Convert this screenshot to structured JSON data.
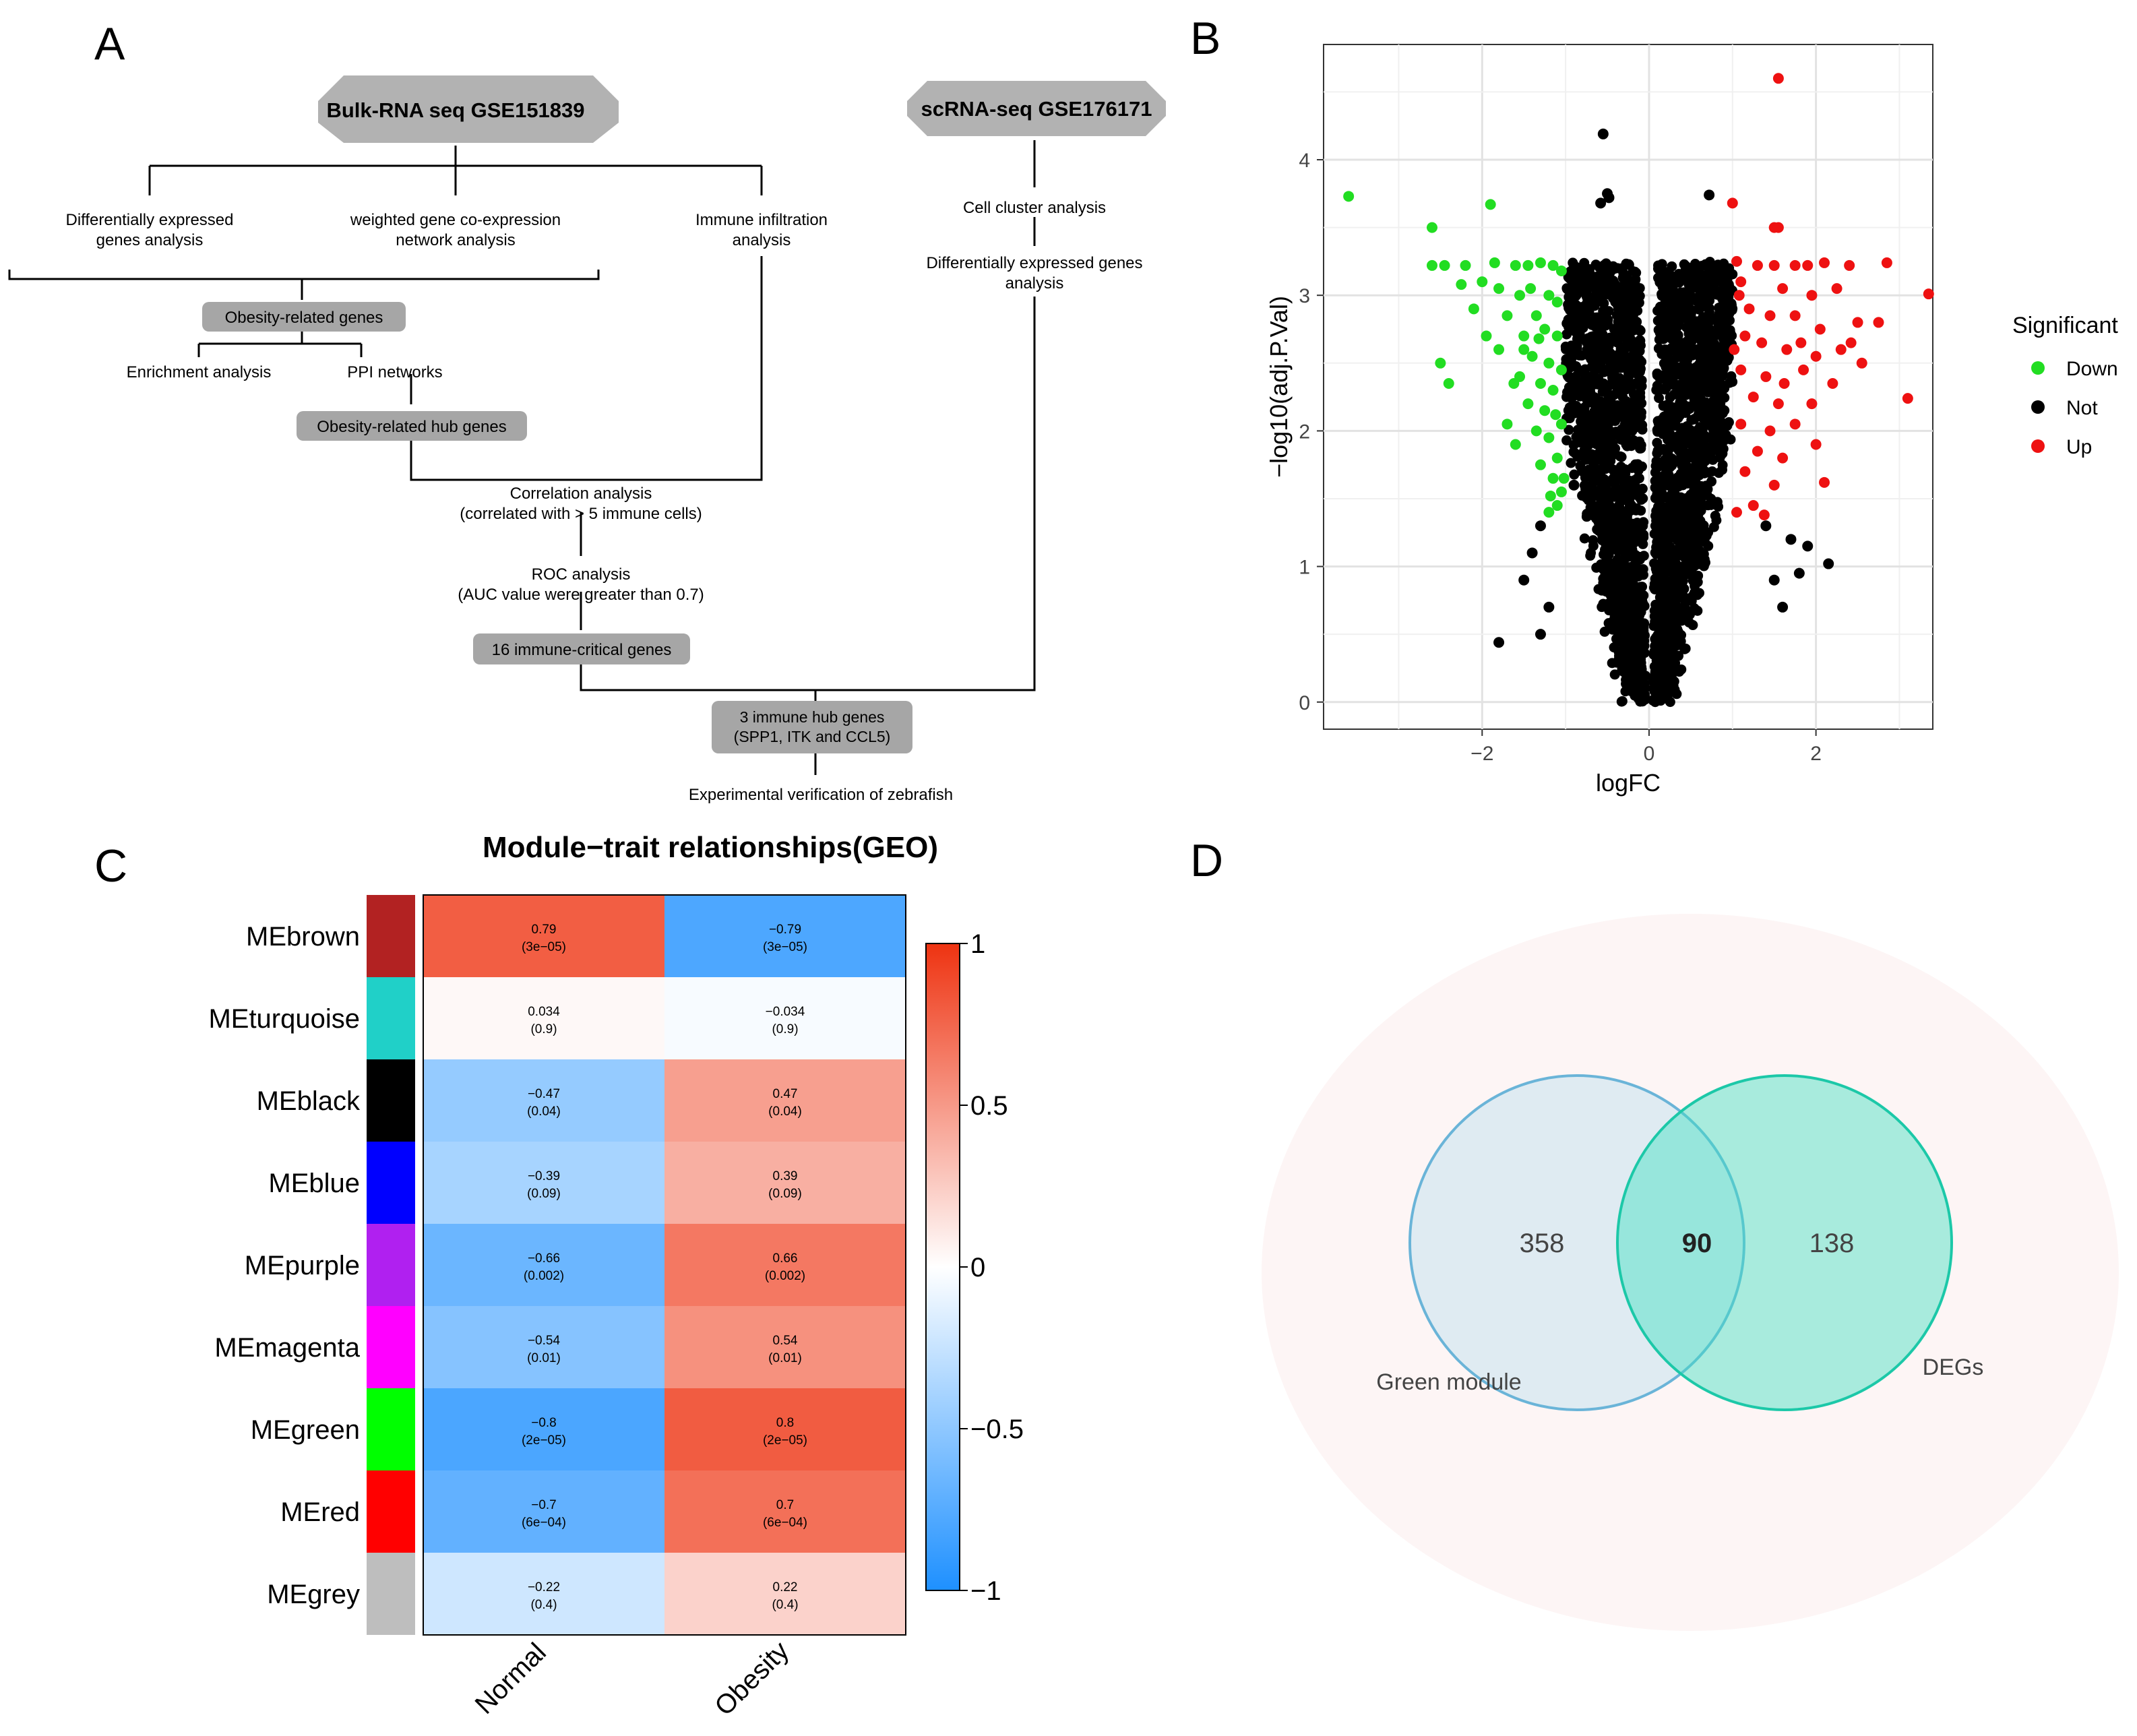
{
  "panels": {
    "a": "A",
    "b": "B",
    "c": "C",
    "d": "D"
  },
  "flowchart": {
    "bulk_title": "Bulk-RNA seq GSE151839",
    "sc_title": "scRNA-seq GSE176171",
    "deg_line1": "Differentially expressed",
    "deg_line2": "genes analysis",
    "wgcna_line1": "weighted gene co-expression",
    "wgcna_line2": "network analysis",
    "immune_line1": "Immune infiltration",
    "immune_line2": "analysis",
    "cell_cluster": "Cell cluster analysis",
    "sc_deg_line1": "Differentially expressed genes",
    "sc_deg_line2": "analysis",
    "obesity_genes": "Obesity-related genes",
    "enrichment": "Enrichment analysis",
    "ppi": "PPI networks",
    "hub_genes": "Obesity-related hub genes",
    "corr_line1": "Correlation analysis",
    "corr_line2": "(correlated with > 5 immune cells)",
    "roc_line1": "ROC analysis",
    "roc_line2": "(AUC value were greater than 0.7)",
    "critical": "16 immune-critical genes",
    "hub3_line1": "3 immune hub genes",
    "hub3_line2": "(SPP1, ITK and CCL5)",
    "verification": "Experimental verification of zebrafish"
  },
  "chart_data": [
    {
      "type": "scatter",
      "subtype": "volcano",
      "xlabel": "logFC",
      "ylabel": "−log10(adj.P.Val)",
      "xlim": [
        -3.9,
        3.4
      ],
      "ylim": [
        -0.2,
        4.85
      ],
      "xticks": [
        -2,
        0,
        2
      ],
      "xtick_labels": [
        "−2",
        "0",
        "2"
      ],
      "yticks": [
        0,
        1,
        2,
        3,
        4
      ],
      "ytick_labels": [
        "0",
        "1",
        "2",
        "3",
        "4"
      ],
      "grid": true,
      "legend_title": "Significant",
      "legend_position": "right",
      "series": [
        {
          "name": "Down",
          "color": "#22dd22",
          "points": [
            [
              -3.6,
              3.73
            ],
            [
              -2.6,
              3.5
            ],
            [
              -1.9,
              3.67
            ],
            [
              -2.6,
              3.22
            ],
            [
              -2.45,
              3.22
            ],
            [
              -2.2,
              3.22
            ],
            [
              -2.0,
              3.1
            ],
            [
              -1.85,
              3.24
            ],
            [
              -1.6,
              3.22
            ],
            [
              -1.45,
              3.22
            ],
            [
              -1.3,
              3.24
            ],
            [
              -1.15,
              3.22
            ],
            [
              -1.05,
              3.18
            ],
            [
              -2.25,
              3.08
            ],
            [
              -1.8,
              3.05
            ],
            [
              -1.55,
              3.0
            ],
            [
              -1.2,
              3.0
            ],
            [
              -1.1,
              2.95
            ],
            [
              -1.35,
              2.85
            ],
            [
              -1.7,
              2.85
            ],
            [
              -2.1,
              2.9
            ],
            [
              -1.95,
              2.7
            ],
            [
              -1.5,
              2.7
            ],
            [
              -1.25,
              2.75
            ],
            [
              -1.1,
              2.7
            ],
            [
              -1.8,
              2.6
            ],
            [
              -1.4,
              2.55
            ],
            [
              -1.2,
              2.5
            ],
            [
              -1.05,
              2.45
            ],
            [
              -2.5,
              2.5
            ],
            [
              -2.4,
              2.35
            ],
            [
              -1.55,
              2.4
            ],
            [
              -1.3,
              2.35
            ],
            [
              -1.15,
              2.3
            ],
            [
              -1.45,
              2.2
            ],
            [
              -1.7,
              2.05
            ],
            [
              -1.35,
              2.0
            ],
            [
              -1.2,
              1.95
            ],
            [
              -1.05,
              2.05
            ],
            [
              -1.1,
              1.8
            ],
            [
              -1.3,
              1.75
            ],
            [
              -1.15,
              1.65
            ],
            [
              -1.05,
              1.55
            ],
            [
              -1.2,
              1.4
            ],
            [
              -1.1,
              1.45
            ],
            [
              -1.6,
              1.9
            ],
            [
              -1.25,
              2.15
            ],
            [
              -1.5,
              2.6
            ],
            [
              -1.62,
              2.35
            ],
            [
              -1.32,
              2.68
            ],
            [
              -1.42,
              3.05
            ],
            [
              -1.12,
              2.12
            ],
            [
              -1.02,
              1.65
            ],
            [
              -1.18,
              1.52
            ]
          ]
        },
        {
          "name": "Not",
          "color": "#000000",
          "points": [
            [
              -0.55,
              4.19
            ],
            [
              -0.5,
              3.75
            ],
            [
              -0.48,
              3.72
            ],
            [
              -0.58,
              3.68
            ],
            [
              0.72,
              3.74
            ],
            [
              -0.75,
              1.9
            ],
            [
              -1.3,
              1.3
            ],
            [
              -1.4,
              1.1
            ],
            [
              -1.5,
              0.9
            ],
            [
              -1.8,
              0.44
            ],
            [
              -1.3,
              0.5
            ],
            [
              -1.2,
              0.7
            ],
            [
              1.5,
              0.9
            ],
            [
              1.8,
              0.95
            ],
            [
              2.15,
              1.02
            ],
            [
              1.7,
              1.2
            ],
            [
              1.4,
              1.3
            ],
            [
              1.9,
              1.15
            ],
            [
              1.6,
              0.7
            ],
            [
              0.9,
              1.95
            ],
            [
              -0.9,
              1.6
            ]
          ]
        },
        {
          "name": "Up",
          "color": "#ee1111",
          "points": [
            [
              1.55,
              4.6
            ],
            [
              1.0,
              3.68
            ],
            [
              1.5,
              3.5
            ],
            [
              1.55,
              3.5
            ],
            [
              1.05,
              3.25
            ],
            [
              1.3,
              3.22
            ],
            [
              1.5,
              3.22
            ],
            [
              1.75,
              3.22
            ],
            [
              1.9,
              3.22
            ],
            [
              2.1,
              3.24
            ],
            [
              2.4,
              3.22
            ],
            [
              2.85,
              3.24
            ],
            [
              3.35,
              3.01
            ],
            [
              1.1,
              3.1
            ],
            [
              1.6,
              3.05
            ],
            [
              1.95,
              3.0
            ],
            [
              2.25,
              3.05
            ],
            [
              1.2,
              2.9
            ],
            [
              1.45,
              2.85
            ],
            [
              1.75,
              2.85
            ],
            [
              2.05,
              2.75
            ],
            [
              2.5,
              2.8
            ],
            [
              2.75,
              2.8
            ],
            [
              1.15,
              2.7
            ],
            [
              1.35,
              2.65
            ],
            [
              1.65,
              2.6
            ],
            [
              2.0,
              2.55
            ],
            [
              2.3,
              2.6
            ],
            [
              2.55,
              2.5
            ],
            [
              1.1,
              2.45
            ],
            [
              1.4,
              2.4
            ],
            [
              1.85,
              2.45
            ],
            [
              2.2,
              2.35
            ],
            [
              1.25,
              2.25
            ],
            [
              1.55,
              2.2
            ],
            [
              1.95,
              2.2
            ],
            [
              3.1,
              2.24
            ],
            [
              1.1,
              2.05
            ],
            [
              1.45,
              2.0
            ],
            [
              1.75,
              2.05
            ],
            [
              1.3,
              1.85
            ],
            [
              1.6,
              1.8
            ],
            [
              2.0,
              1.9
            ],
            [
              1.15,
              1.7
            ],
            [
              1.5,
              1.6
            ],
            [
              2.1,
              1.62
            ],
            [
              1.25,
              1.45
            ],
            [
              1.05,
              1.4
            ],
            [
              1.38,
              1.38
            ],
            [
              1.62,
              2.35
            ],
            [
              1.02,
              2.6
            ],
            [
              1.08,
              3.0
            ],
            [
              1.82,
              2.65
            ],
            [
              2.42,
              2.65
            ]
          ]
        }
      ]
    },
    {
      "type": "heatmap",
      "title": "Module−trait relationships(GEO)",
      "rows": [
        "MEbrown",
        "MEturquoise",
        "MEblack",
        "MEblue",
        "MEpurple",
        "MEmagenta",
        "MEgreen",
        "MEred",
        "MEgrey"
      ],
      "row_colors": [
        "#b22222",
        "#20d0c8",
        "#000000",
        "#0000ff",
        "#b020f0",
        "#ff00ff",
        "#00ff00",
        "#ff0000",
        "#bebebe"
      ],
      "columns": [
        "Normal",
        "Obesity"
      ],
      "values": [
        [
          0.79,
          -0.79
        ],
        [
          0.034,
          -0.034
        ],
        [
          -0.47,
          0.47
        ],
        [
          -0.39,
          0.39
        ],
        [
          -0.66,
          0.66
        ],
        [
          -0.54,
          0.54
        ],
        [
          -0.8,
          0.8
        ],
        [
          -0.7,
          0.7
        ],
        [
          -0.22,
          0.22
        ]
      ],
      "value_labels": [
        [
          "0.79",
          "−0.79"
        ],
        [
          "0.034",
          "−0.034"
        ],
        [
          "−0.47",
          "0.47"
        ],
        [
          "−0.39",
          "0.39"
        ],
        [
          "−0.66",
          "0.66"
        ],
        [
          "−0.54",
          "0.54"
        ],
        [
          "−0.8",
          "0.8"
        ],
        [
          "−0.7",
          "0.7"
        ],
        [
          "−0.22",
          "0.22"
        ]
      ],
      "pvalues": [
        [
          "(3e−05)",
          "(3e−05)"
        ],
        [
          "(0.9)",
          "(0.9)"
        ],
        [
          "(0.04)",
          "(0.04)"
        ],
        [
          "(0.09)",
          "(0.09)"
        ],
        [
          "(0.002)",
          "(0.002)"
        ],
        [
          "(0.01)",
          "(0.01)"
        ],
        [
          "(2e−05)",
          "(2e−05)"
        ],
        [
          "(6e−04)",
          "(6e−04)"
        ],
        [
          "(0.4)",
          "(0.4)"
        ]
      ],
      "colorbar": {
        "min": -1,
        "max": 1,
        "ticks": [
          1,
          0.5,
          0,
          -0.5,
          -1
        ],
        "tick_labels": [
          "1",
          "0.5",
          "0",
          "−0.5",
          "−1"
        ],
        "low_color": "#1e90ff",
        "mid_color": "#ffffff",
        "high_color": "#ee3311"
      }
    },
    {
      "type": "venn",
      "sets": [
        {
          "name": "Green module",
          "only": "358",
          "color": "#87ceeb"
        },
        {
          "name": "DEGs",
          "only": "138",
          "color": "#40e0c0"
        }
      ],
      "intersection": "90"
    }
  ]
}
